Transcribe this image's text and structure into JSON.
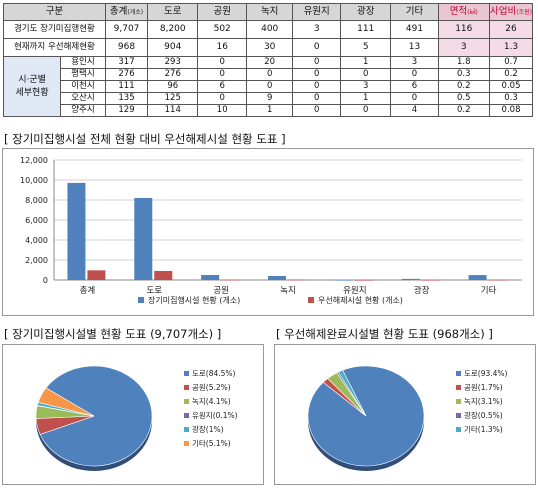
{
  "table": {
    "headers": [
      {
        "main": "구분",
        "unit": ""
      },
      {
        "main": "총계",
        "unit": "(개소)"
      },
      {
        "main": "도로",
        "unit": ""
      },
      {
        "main": "공원",
        "unit": ""
      },
      {
        "main": "녹지",
        "unit": ""
      },
      {
        "main": "유원지",
        "unit": ""
      },
      {
        "main": "광장",
        "unit": ""
      },
      {
        "main": "기타",
        "unit": ""
      },
      {
        "main": "면적",
        "unit": "(㎢)"
      },
      {
        "main": "사업비",
        "unit": "(조원)"
      }
    ],
    "rows": [
      {
        "label": "경기도 장기미집행현황",
        "values": [
          "9,707",
          "8,200",
          "502",
          "400",
          "3",
          "111",
          "491",
          "116",
          "26"
        ]
      },
      {
        "label": "현재까지 우선해제현황",
        "values": [
          "968",
          "904",
          "16",
          "30",
          "0",
          "5",
          "13",
          "3",
          "1.3"
        ]
      }
    ],
    "group_label_line1": "시·군별",
    "group_label_line2": "세부현황",
    "subrows": [
      {
        "label": "용인시",
        "values": [
          "317",
          "293",
          "0",
          "20",
          "0",
          "1",
          "3",
          "1.8",
          "0.7"
        ]
      },
      {
        "label": "평택시",
        "values": [
          "276",
          "276",
          "0",
          "0",
          "0",
          "0",
          "0",
          "0.3",
          "0.2"
        ]
      },
      {
        "label": "이천시",
        "values": [
          "111",
          "96",
          "6",
          "0",
          "0",
          "3",
          "6",
          "0.2",
          "0.05"
        ]
      },
      {
        "label": "오산시",
        "values": [
          "135",
          "125",
          "0",
          "9",
          "0",
          "1",
          "0",
          "0.5",
          "0.3"
        ]
      },
      {
        "label": "양주시",
        "values": [
          "129",
          "114",
          "10",
          "1",
          "0",
          "0",
          "4",
          "0.2",
          "0.08"
        ]
      }
    ]
  },
  "sections": {
    "bar_title": "[ 장기미집행시설 전체 현황 대비 우선해제시설 현황 도표 ]",
    "pie1_title": "[ 장기미집행시설별 현황 도표 (9,707개소) ]",
    "pie2_title": "[ 우선해제완료시설별 현황 도표 (968개소) ]"
  },
  "chart_data": [
    {
      "type": "bar",
      "categories": [
        "총계",
        "도로",
        "공원",
        "녹지",
        "유원지",
        "광장",
        "기타"
      ],
      "series": [
        {
          "name": "장기미집행시설 현황 (개소)",
          "values": [
            9707,
            8200,
            502,
            400,
            3,
            111,
            491
          ],
          "color": "#4f81bd"
        },
        {
          "name": "우선해제시설 현황 (개소)",
          "values": [
            968,
            904,
            16,
            30,
            0,
            5,
            13
          ],
          "color": "#c0504d"
        }
      ],
      "yticks": [
        "0",
        "2,000",
        "4,000",
        "6,000",
        "8,000",
        "10,000",
        "12,000"
      ],
      "ylim": [
        0,
        12000
      ],
      "grid": true,
      "legend": "bottom"
    },
    {
      "type": "pie",
      "labels": [
        "도로",
        "공원",
        "녹지",
        "유원지",
        "광장",
        "기타"
      ],
      "values": [
        84.5,
        5.2,
        4.1,
        0.1,
        1,
        5.1
      ],
      "legend_labels": [
        "도로(84.5%)",
        "공원(5.2%)",
        "녹지(4.1%)",
        "유원지(0.1%)",
        "광장(1%)",
        "기타(5.1%)"
      ],
      "colors": [
        "#4f81bd",
        "#c0504d",
        "#9bbb59",
        "#8064a2",
        "#4bacc6",
        "#f79646"
      ],
      "legend": "right"
    },
    {
      "type": "pie",
      "labels": [
        "도로",
        "공원",
        "녹지",
        "광장",
        "기타"
      ],
      "values": [
        93.4,
        1.7,
        3.1,
        0.5,
        1.3
      ],
      "legend_labels": [
        "도로(93.4%)",
        "공원(1.7%)",
        "녹지(3.1%)",
        "광장(0.5%)",
        "기타(1.3%)"
      ],
      "colors": [
        "#4f81bd",
        "#c0504d",
        "#9bbb59",
        "#8064a2",
        "#4bacc6"
      ],
      "legend": "right"
    }
  ]
}
